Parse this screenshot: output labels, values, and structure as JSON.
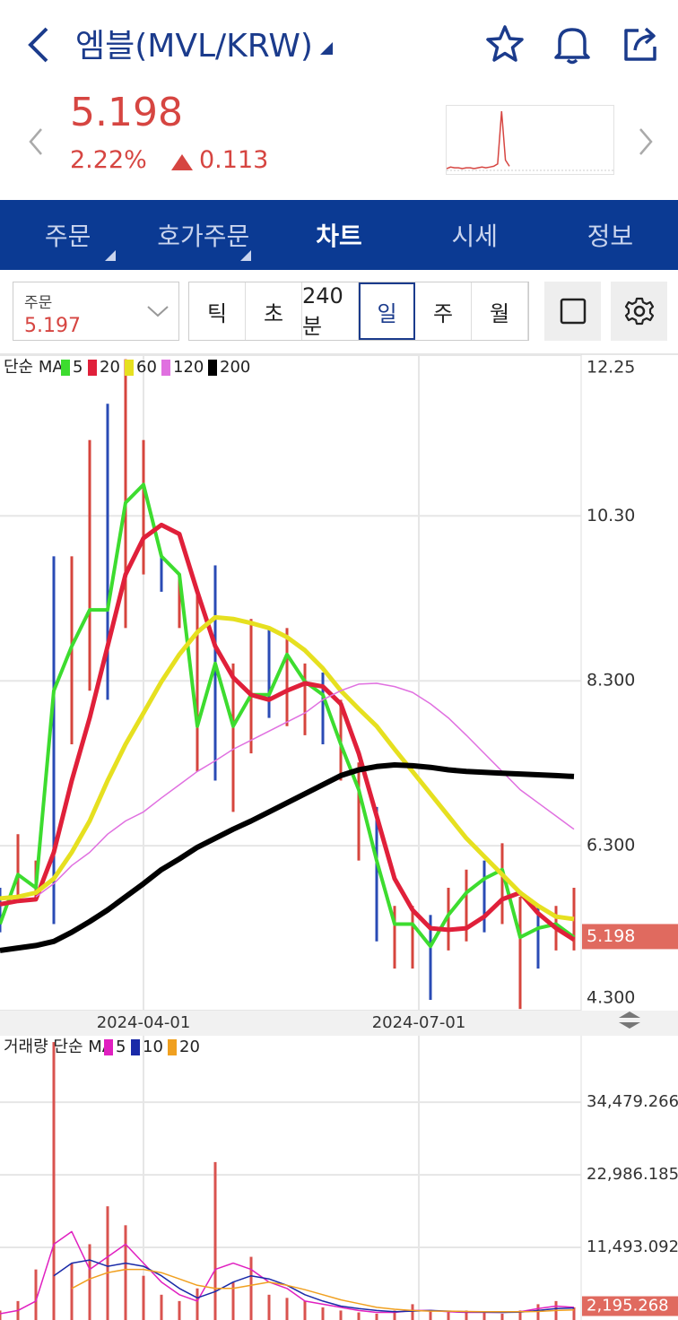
{
  "header": {
    "title": "엠블(MVL/KRW)",
    "price": "5.198",
    "change_pct": "2.22%",
    "change": "0.113",
    "mini_chart": [
      4.9,
      5.1,
      5.0,
      5.0,
      4.9,
      5.0,
      5.0,
      4.9,
      5.0,
      5.1,
      5.0,
      5.1,
      5.2,
      5.5,
      12.3,
      6.0,
      5.2
    ]
  },
  "tabs": {
    "items": [
      "주문",
      "호가주문",
      "차트",
      "시세",
      "정보"
    ],
    "selected": 2
  },
  "controls": {
    "order_label": "주문",
    "order_value": "5.197",
    "periods": [
      "틱",
      "초",
      "240분",
      "일",
      "주",
      "월"
    ],
    "selected_period": 3
  },
  "chart_data": [
    {
      "type": "line",
      "legend_title": "단순 MA",
      "ylim": [
        4.3,
        12.25
      ],
      "yticks": [
        {
          "value": 12.25,
          "label": "12.25"
        },
        {
          "value": 10.3,
          "label": "10.30"
        },
        {
          "value": 8.3,
          "label": "8.300"
        },
        {
          "value": 6.3,
          "label": "6.300"
        },
        {
          "value": 4.3,
          "label": "4.300"
        }
      ],
      "xticks": [
        {
          "value": 8,
          "label": "2024-04-01"
        },
        {
          "value": 23.35,
          "label": "2024-07-01"
        }
      ],
      "grid": true,
      "last_value": 5.198,
      "high": [
        5.79,
        6.44,
        6.12,
        9.81,
        9.81,
        11.22,
        11.66,
        12.2,
        11.22,
        9.81,
        9.59,
        9.38,
        9.7,
        8.51,
        9.05,
        8.94,
        8.94,
        8.51,
        8.4,
        8.07,
        7.31,
        6.77,
        5.57,
        5.57,
        5.46,
        5.79,
        6.01,
        6.12,
        6.33,
        5.68,
        5.57,
        5.57,
        5.79
      ],
      "low": [
        5.25,
        5.68,
        5.68,
        5.35,
        7.53,
        8.18,
        8.07,
        8.94,
        9.59,
        9.38,
        8.94,
        7.2,
        7.09,
        6.71,
        7.42,
        7.85,
        7.75,
        7.64,
        7.53,
        7.09,
        6.12,
        5.14,
        4.81,
        4.81,
        4.43,
        5.03,
        5.14,
        5.25,
        5.35,
        4.32,
        4.81,
        5.03,
        5.03
      ],
      "series": [
        {
          "name": "5",
          "color": "#3ddc2f",
          "width": 4,
          "values": [
            5.35,
            5.95,
            5.79,
            8.18,
            8.72,
            9.16,
            9.16,
            10.46,
            10.68,
            9.81,
            9.59,
            7.75,
            8.51,
            7.75,
            8.13,
            8.13,
            8.62,
            8.29,
            8.13,
            7.53,
            6.98,
            6.12,
            5.35,
            5.35,
            5.08,
            5.46,
            5.73,
            5.9,
            6.01,
            5.19,
            5.3,
            5.35,
            5.19
          ]
        },
        {
          "name": "20",
          "color": "#e0203a",
          "width": 5,
          "values": [
            5.59,
            5.63,
            5.65,
            6.22,
            7.09,
            7.85,
            8.72,
            9.59,
            10.03,
            10.19,
            10.08,
            9.38,
            8.72,
            8.34,
            8.13,
            8.07,
            8.18,
            8.27,
            8.23,
            8.02,
            7.42,
            6.66,
            5.9,
            5.52,
            5.3,
            5.28,
            5.3,
            5.44,
            5.65,
            5.73,
            5.48,
            5.3,
            5.16
          ]
        },
        {
          "name": "60",
          "color": "#e6e020",
          "width": 5,
          "values": [
            5.66,
            5.68,
            5.73,
            5.9,
            6.22,
            6.6,
            7.09,
            7.53,
            7.91,
            8.29,
            8.62,
            8.89,
            9.07,
            9.05,
            9.0,
            8.94,
            8.83,
            8.67,
            8.45,
            8.18,
            7.96,
            7.75,
            7.47,
            7.2,
            6.93,
            6.66,
            6.39,
            6.17,
            5.95,
            5.73,
            5.57,
            5.44,
            5.41
          ]
        },
        {
          "name": "120",
          "color": "#e070e0",
          "width": 1.5,
          "values": [
            null,
            null,
            5.68,
            5.84,
            6.06,
            6.22,
            6.44,
            6.6,
            6.71,
            6.88,
            7.04,
            7.2,
            7.33,
            7.47,
            7.58,
            7.69,
            7.8,
            7.91,
            8.07,
            8.18,
            8.26,
            8.27,
            8.23,
            8.16,
            8.02,
            7.85,
            7.64,
            7.42,
            7.2,
            6.98,
            6.82,
            6.66,
            6.5
          ]
        },
        {
          "name": "200",
          "color": "#000000",
          "width": 6,
          "values": [
            5.03,
            5.06,
            5.09,
            5.14,
            5.25,
            5.38,
            5.52,
            5.68,
            5.84,
            6.01,
            6.14,
            6.28,
            6.39,
            6.5,
            6.6,
            6.71,
            6.82,
            6.93,
            7.04,
            7.15,
            7.22,
            7.26,
            7.28,
            7.27,
            7.25,
            7.22,
            7.2,
            7.19,
            7.18,
            7.17,
            7.16,
            7.15,
            7.14
          ]
        }
      ]
    },
    {
      "type": "bar",
      "legend_title": "거래량 단순 MA",
      "color": "#d9534f",
      "ylim": [
        0,
        45000
      ],
      "yticks": [
        {
          "value": 34479.266,
          "label": "34,479.266"
        },
        {
          "value": 22986.185,
          "label": "22,986.185"
        },
        {
          "value": 11493.092,
          "label": "11,493.092"
        }
      ],
      "last_value": {
        "value": 2195.268,
        "label": "2,195.268"
      },
      "values": [
        1500,
        3000,
        8000,
        44000,
        9000,
        12000,
        18000,
        15000,
        7000,
        4000,
        3000,
        5000,
        25000,
        6000,
        10000,
        4000,
        3500,
        3000,
        2000,
        1500,
        1200,
        1000,
        1500,
        2500,
        1500,
        1200,
        1500,
        1200,
        1000,
        1500,
        2500,
        3000,
        2000
      ],
      "series": [
        {
          "name": "5",
          "color": "#e020c0",
          "values": [
            1000,
            1500,
            3000,
            12000,
            14000,
            8000,
            10000,
            12000,
            9000,
            6000,
            4000,
            3000,
            8000,
            9000,
            8000,
            6000,
            5000,
            3000,
            2500,
            2000,
            1500,
            1200,
            1200,
            1500,
            1500,
            1300,
            1200,
            1200,
            1200,
            1300,
            1800,
            2200,
            2000
          ]
        },
        {
          "name": "10",
          "color": "#1a2aa8",
          "values": [
            null,
            null,
            null,
            7000,
            9000,
            9500,
            8500,
            9000,
            8500,
            7000,
            5000,
            3500,
            4500,
            6000,
            7000,
            6500,
            5500,
            4000,
            3000,
            2200,
            1800,
            1500,
            1300,
            1400,
            1500,
            1400,
            1300,
            1250,
            1200,
            1250,
            1500,
            1800,
            1900
          ]
        },
        {
          "name": "20",
          "color": "#f0a020",
          "values": [
            null,
            null,
            null,
            null,
            5000,
            6500,
            7500,
            8000,
            8000,
            7500,
            6500,
            5500,
            5000,
            5000,
            5500,
            6000,
            5500,
            4800,
            4000,
            3200,
            2600,
            2000,
            1700,
            1500,
            1400,
            1400,
            1350,
            1300,
            1300,
            1300,
            1350,
            1500,
            1600
          ]
        }
      ]
    }
  ]
}
